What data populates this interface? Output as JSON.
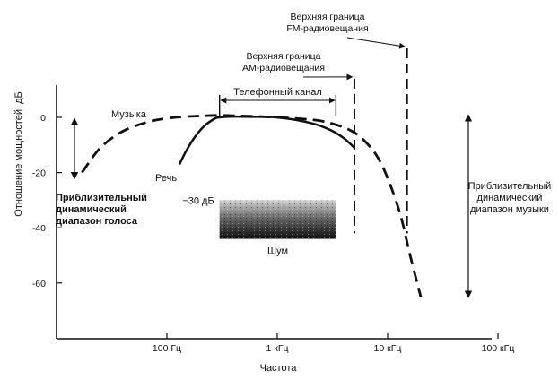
{
  "chart_data": {
    "type": "line",
    "xlabel": "Частота",
    "ylabel": "Отношение мощностей, дБ",
    "x_scale": "log",
    "xlim": [
      10,
      100000
    ],
    "ylim": [
      -80,
      5
    ],
    "x_ticks": [
      {
        "value": 100,
        "label": "100 Гц"
      },
      {
        "value": 1000,
        "label": "1 кГц"
      },
      {
        "value": 10000,
        "label": "10 кГц"
      },
      {
        "value": 100000,
        "label": "100 кГц"
      }
    ],
    "y_ticks": [
      {
        "value": 0,
        "label": "0"
      },
      {
        "value": -20,
        "label": "-20"
      },
      {
        "value": -40,
        "label": "-40"
      },
      {
        "value": -60,
        "label": "-60"
      }
    ],
    "grid": false,
    "series": [
      {
        "name": "Музыка",
        "style": "dashed",
        "x": [
          17,
          25,
          40,
          70,
          120,
          200,
          300,
          500,
          1000,
          2000,
          3000,
          4500,
          6000,
          8000,
          10000,
          13000,
          16000,
          20000
        ],
        "y": [
          -20,
          -11,
          -5,
          -1.5,
          0,
          0.5,
          0.7,
          0.5,
          0,
          -0.8,
          -2,
          -4.5,
          -8,
          -14,
          -22,
          -35,
          -50,
          -65
        ]
      },
      {
        "name": "Речь",
        "style": "solid",
        "x": [
          130,
          150,
          180,
          220,
          270,
          300,
          400,
          600,
          1000,
          2000,
          3000,
          4000,
          5000
        ],
        "y": [
          -17,
          -12,
          -7,
          -3,
          -0.5,
          0,
          0.3,
          0.2,
          0,
          -2,
          -4.5,
          -7.5,
          -11
        ]
      }
    ],
    "annotations": {
      "phone_channel": {
        "label": "Телефонный канал",
        "x_range": [
          300,
          3400
        ],
        "top_db": 0.5
      },
      "noise": {
        "label": "Шум",
        "level_label": "−30 дБ",
        "x_range": [
          300,
          3400
        ],
        "db_range": [
          -30,
          -44
        ]
      },
      "am_limit": {
        "label": "Верхняя граница АМ-радиовещания",
        "x": 5000,
        "db_range": [
          14,
          -42
        ]
      },
      "fm_limit": {
        "label": "Верхняя граница FM-радиовещания",
        "x": 15000,
        "db_range": [
          25,
          -42
        ]
      },
      "voice_range": {
        "label": "Приблизительный динамический диапазон голоса",
        "x": 12,
        "db_range": [
          0,
          -22
        ]
      },
      "music_range": {
        "label": "Приблизительный динамический диапазон музыки",
        "x": 60000,
        "db_range": [
          0,
          -65
        ]
      },
      "music_label": "Музыка",
      "speech_label": "Речь"
    }
  }
}
